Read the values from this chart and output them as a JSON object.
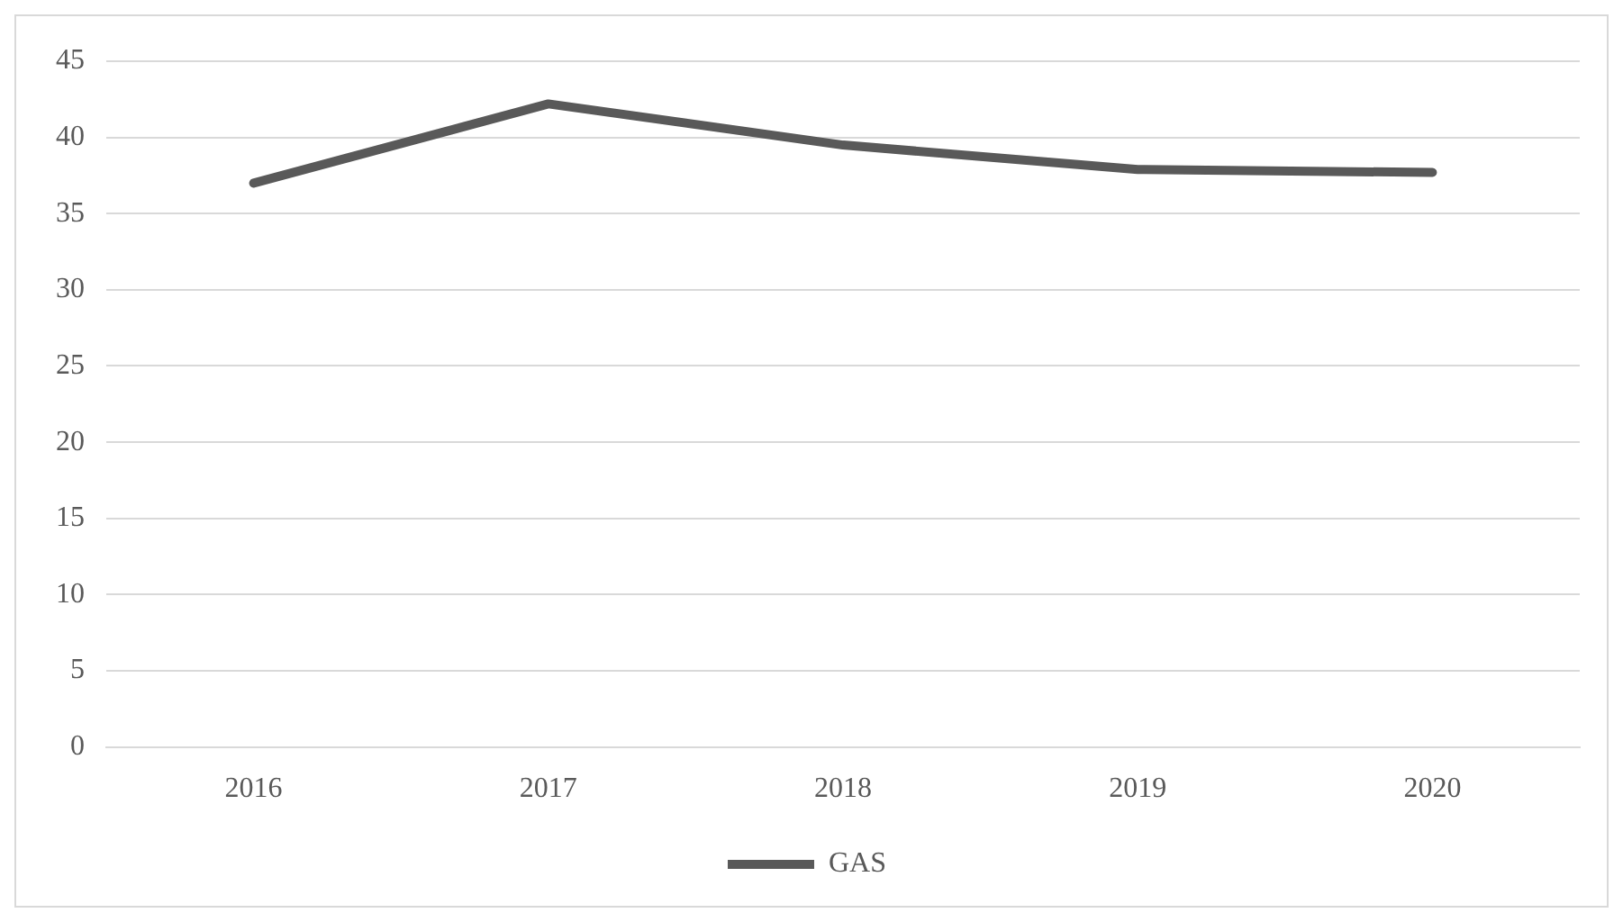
{
  "chart_data": {
    "type": "line",
    "categories": [
      "2016",
      "2017",
      "2018",
      "2019",
      "2020"
    ],
    "series": [
      {
        "name": "GAS",
        "color": "#595959",
        "values": [
          37,
          42.2,
          39.5,
          37.9,
          37.7
        ]
      }
    ],
    "ylim": [
      0,
      45
    ],
    "yticks": [
      0,
      5,
      10,
      15,
      20,
      25,
      30,
      35,
      40,
      45
    ],
    "grid": "y",
    "legend": "bottom",
    "marker": "none",
    "line_style": "solid"
  }
}
